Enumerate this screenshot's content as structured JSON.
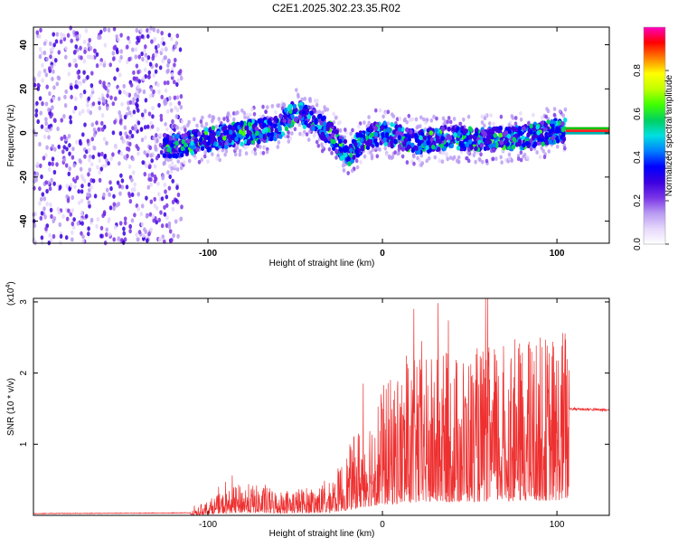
{
  "title": "C2E1.2025.302.23.35.R02",
  "chart_data": [
    {
      "type": "heatmap",
      "name": "spectrogram",
      "xlabel": "Height of straight line (km)",
      "ylabel": "Frequency (Hz)",
      "xlim": [
        -200,
        130
      ],
      "ylim": [
        -50,
        48
      ],
      "xticks": [
        -100,
        0,
        100
      ],
      "yticks": [
        -40,
        -20,
        0,
        20,
        40
      ],
      "colorbar": {
        "label": "Normalized spectral amplitude",
        "range": [
          0,
          1
        ],
        "ticks": [
          "0.0",
          "0.2",
          "0.4",
          "0.6",
          "0.8"
        ],
        "colors": [
          "#ffffff",
          "#e6d8fb",
          "#b89af2",
          "#7a34e6",
          "#3b00e0",
          "#0000ff",
          "#0080ff",
          "#00e0e0",
          "#00d060",
          "#40ff00",
          "#c0ff00",
          "#ffff00",
          "#ff8000",
          "#ff0000",
          "#ff00c0"
        ]
      },
      "band_center": [
        {
          "x": -120,
          "y": -6
        },
        {
          "x": -100,
          "y": -3
        },
        {
          "x": -80,
          "y": 0
        },
        {
          "x": -60,
          "y": 2
        },
        {
          "x": -50,
          "y": 10
        },
        {
          "x": -40,
          "y": 6
        },
        {
          "x": -30,
          "y": 0
        },
        {
          "x": -20,
          "y": -10
        },
        {
          "x": -10,
          "y": -2
        },
        {
          "x": 0,
          "y": 0
        },
        {
          "x": 20,
          "y": -4
        },
        {
          "x": 40,
          "y": -2
        },
        {
          "x": 60,
          "y": -3
        },
        {
          "x": 80,
          "y": -2
        },
        {
          "x": 100,
          "y": 1
        },
        {
          "x": 130,
          "y": 1
        }
      ]
    },
    {
      "type": "line",
      "name": "snr",
      "xlabel": "Height of straight line (km)",
      "ylabel": "SNR (10 * v/v)",
      "scale_label": "(x10",
      "scale_exp": "4",
      "scale_close": ")",
      "xlim": [
        -200,
        130
      ],
      "ylim": [
        0,
        3.05
      ],
      "xticks": [
        -100,
        0,
        100
      ],
      "yticks": [
        1,
        2,
        3
      ],
      "color": "#ee3030",
      "envelope": [
        {
          "x": -200,
          "y": 0.02
        },
        {
          "x": -110,
          "y": 0.03
        },
        {
          "x": -100,
          "y": 0.12
        },
        {
          "x": -80,
          "y": 0.25
        },
        {
          "x": -60,
          "y": 0.2
        },
        {
          "x": -40,
          "y": 0.22
        },
        {
          "x": -30,
          "y": 0.25
        },
        {
          "x": -20,
          "y": 0.5
        },
        {
          "x": -10,
          "y": 0.8
        },
        {
          "x": 0,
          "y": 1.0
        },
        {
          "x": 20,
          "y": 1.2
        },
        {
          "x": 40,
          "y": 1.25
        },
        {
          "x": 60,
          "y": 1.3
        },
        {
          "x": 80,
          "y": 1.35
        },
        {
          "x": 100,
          "y": 1.4
        },
        {
          "x": 105,
          "y": 1.5
        },
        {
          "x": 130,
          "y": 1.48
        }
      ]
    }
  ]
}
